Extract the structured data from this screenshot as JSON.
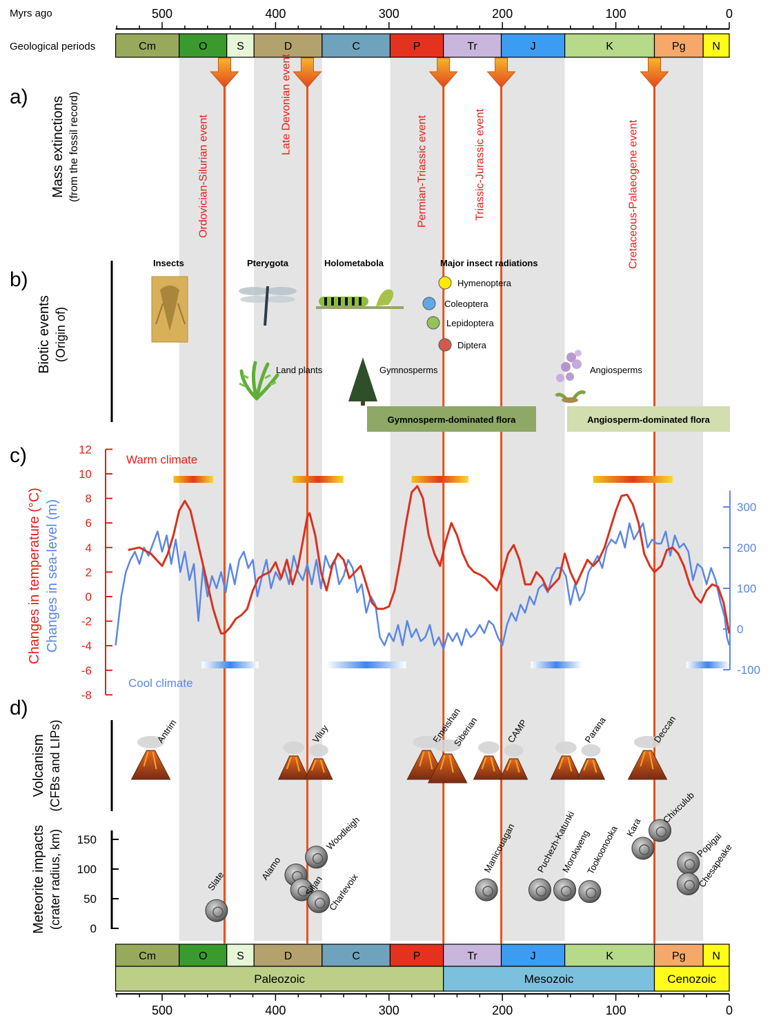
{
  "top_axis": {
    "label": "Myrs ago",
    "ticks": [
      500,
      400,
      300,
      200,
      100,
      0
    ]
  },
  "bottom_axis": {
    "ticks": [
      500,
      400,
      300,
      200,
      100,
      0
    ]
  },
  "periods_label": "Geological periods",
  "periods": [
    {
      "abbr": "Cm",
      "start": 541,
      "end": 485,
      "color": "#98A95C"
    },
    {
      "abbr": "O",
      "start": 485,
      "end": 443,
      "color": "#3A9A2E"
    },
    {
      "abbr": "S",
      "start": 443,
      "end": 419,
      "color": "#E6F6D6"
    },
    {
      "abbr": "D",
      "start": 419,
      "end": 359,
      "color": "#B3A26E"
    },
    {
      "abbr": "C",
      "start": 359,
      "end": 299,
      "color": "#6FA3BD"
    },
    {
      "abbr": "P",
      "start": 299,
      "end": 252,
      "color": "#E5321F"
    },
    {
      "abbr": "Tr",
      "start": 252,
      "end": 201,
      "color": "#C9B6DC"
    },
    {
      "abbr": "J",
      "start": 201,
      "end": 145,
      "color": "#3C9CF1"
    },
    {
      "abbr": "K",
      "start": 145,
      "end": 66,
      "color": "#B6D98A"
    },
    {
      "abbr": "Pg",
      "start": 66,
      "end": 23,
      "color": "#F5A86A"
    },
    {
      "abbr": "N",
      "start": 23,
      "end": 0,
      "color": "#FFFB1A"
    }
  ],
  "eras": [
    {
      "name": "Paleozoic",
      "start": 541,
      "end": 252,
      "color": "#BCCF86"
    },
    {
      "name": "Mesozoic",
      "start": 252,
      "end": 66,
      "color": "#7BC1DD"
    },
    {
      "name": "Cenozoic",
      "start": 66,
      "end": 0,
      "color": "#FFFB1A"
    }
  ],
  "section_a": {
    "letter": "a)",
    "title": "Mass extinctions",
    "subtitle": "(from the fossil record)"
  },
  "extinctions": [
    {
      "label": "Ordovician-Silurian event",
      "age": 445
    },
    {
      "label": "Late Devonian event",
      "age": 372
    },
    {
      "label": "Permian-Triassic event",
      "age": 252
    },
    {
      "label": "Triassic-Jurassic event",
      "age": 201
    },
    {
      "label": "Cretaceous-Palaeogene event",
      "age": 66
    }
  ],
  "section_b": {
    "letter": "b)",
    "title": "Biotic events",
    "subtitle": "(Origin of)"
  },
  "biotic_labels": {
    "insects": "Insects",
    "pterygota": "Pterygota",
    "holometabola": "Holometabola",
    "radiations": "Major insect radiations",
    "land_plants": "Land plants",
    "gymnosperms": "Gymnosperms",
    "angiosperms": "Angiosperms"
  },
  "insect_radiations": [
    {
      "name": "Hymenoptera",
      "color": "#FFEA00"
    },
    {
      "name": "Coleoptera",
      "color": "#62A8E8"
    },
    {
      "name": "Lepidoptera",
      "color": "#93C25A"
    },
    {
      "name": "Diptera",
      "color": "#D05A4E"
    }
  ],
  "flora": [
    {
      "label": "Gymnosperm-dominated flora",
      "color": "#8FA866"
    },
    {
      "label": "Angiosperm-dominated flora",
      "color": "#D2DDB0"
    }
  ],
  "section_c": {
    "letter": "c)"
  },
  "chart_data": {
    "type": "line",
    "ylabel": "Changes in temperature (°C)",
    "ylabel2": "Changes in sea-level (m)",
    "ylim": [
      -8,
      12
    ],
    "yticks": [
      12,
      10,
      8,
      6,
      4,
      2,
      0,
      -2,
      -4,
      -6,
      -8
    ],
    "ylim2": [
      -100,
      340
    ],
    "yticks2": [
      300,
      200,
      100,
      0,
      -100
    ],
    "xlim": [
      541,
      0
    ],
    "warm_label": "Warm climate",
    "cool_label": "Cool climate",
    "warm_periods": [
      [
        490,
        455
      ],
      [
        385,
        340
      ],
      [
        280,
        230
      ],
      [
        120,
        50
      ]
    ],
    "cool_periods": [
      [
        465,
        415
      ],
      [
        355,
        285
      ],
      [
        175,
        130
      ],
      [
        38,
        0
      ]
    ],
    "series": [
      {
        "name": "Changes in temperature (°C)",
        "color": "#D9311E",
        "axis": "left",
        "x": [
          530,
          520,
          510,
          500,
          495,
          490,
          485,
          480,
          475,
          470,
          465,
          460,
          455,
          450,
          448,
          445,
          440,
          435,
          430,
          425,
          420,
          415,
          410,
          405,
          400,
          395,
          390,
          385,
          380,
          375,
          372,
          370,
          365,
          360,
          355,
          350,
          345,
          340,
          335,
          330,
          325,
          320,
          315,
          310,
          305,
          300,
          295,
          290,
          285,
          280,
          275,
          270,
          265,
          260,
          255,
          250,
          245,
          240,
          235,
          230,
          225,
          220,
          215,
          210,
          205,
          201,
          195,
          190,
          185,
          180,
          175,
          170,
          165,
          160,
          155,
          150,
          145,
          140,
          135,
          130,
          125,
          120,
          115,
          110,
          105,
          100,
          95,
          90,
          85,
          80,
          75,
          70,
          66,
          60,
          55,
          50,
          45,
          40,
          35,
          30,
          25,
          20,
          15,
          10,
          5,
          0
        ],
        "y": [
          3.8,
          4.0,
          3.5,
          2.5,
          3.5,
          5.0,
          7.0,
          7.8,
          7.0,
          5.0,
          3.0,
          1.0,
          -1.0,
          -2.5,
          -3.0,
          -3.0,
          -2.5,
          -1.8,
          -1.5,
          -1.0,
          0.5,
          1.5,
          1.8,
          2.0,
          2.8,
          1.5,
          3.0,
          1.0,
          2.5,
          5.0,
          6.5,
          6.8,
          5.0,
          2.0,
          0.5,
          2.5,
          3.5,
          3.0,
          1.5,
          2.0,
          2.5,
          1.0,
          -0.5,
          -1.0,
          -1.0,
          -0.8,
          0.5,
          3.0,
          6.0,
          8.5,
          9.0,
          8.0,
          5.0,
          3.5,
          2.5,
          4.5,
          6.0,
          5.0,
          3.5,
          2.5,
          2.0,
          1.8,
          1.5,
          1.0,
          0.5,
          1.5,
          3.5,
          4.2,
          3.0,
          1.0,
          1.0,
          2.0,
          1.5,
          0.5,
          1.0,
          1.5,
          3.5,
          2.0,
          1.0,
          2.0,
          3.0,
          2.5,
          3.0,
          4.0,
          5.5,
          7.0,
          8.2,
          8.3,
          7.5,
          6.0,
          3.5,
          2.5,
          2.0,
          2.5,
          3.8,
          4.0,
          3.5,
          2.5,
          1.0,
          0.0,
          -0.5,
          0.5,
          1.0,
          0.8,
          -0.5,
          -3.0
        ]
      },
      {
        "name": "Changes in sea-level (m)",
        "color": "#5A86E8",
        "axis": "right",
        "x": [
          541,
          536,
          532,
          528,
          524,
          520,
          516,
          512,
          508,
          504,
          500,
          496,
          492,
          488,
          484,
          480,
          476,
          472,
          468,
          464,
          460,
          456,
          452,
          448,
          444,
          440,
          436,
          432,
          428,
          424,
          420,
          416,
          412,
          408,
          404,
          400,
          396,
          392,
          388,
          384,
          380,
          376,
          372,
          368,
          364,
          360,
          356,
          352,
          348,
          344,
          340,
          336,
          332,
          328,
          324,
          320,
          316,
          312,
          308,
          304,
          300,
          296,
          292,
          288,
          284,
          280,
          276,
          272,
          268,
          264,
          260,
          256,
          252,
          248,
          244,
          240,
          236,
          232,
          228,
          224,
          220,
          216,
          212,
          208,
          204,
          200,
          196,
          192,
          188,
          184,
          180,
          176,
          172,
          168,
          164,
          160,
          156,
          152,
          148,
          144,
          140,
          136,
          132,
          128,
          124,
          120,
          116,
          112,
          108,
          104,
          100,
          96,
          92,
          88,
          84,
          80,
          76,
          72,
          68,
          64,
          60,
          56,
          52,
          48,
          44,
          40,
          36,
          32,
          28,
          24,
          20,
          16,
          12,
          8,
          4,
          2,
          0
        ],
        "y": [
          -40,
          80,
          140,
          170,
          190,
          160,
          200,
          180,
          210,
          240,
          190,
          230,
          160,
          220,
          140,
          190,
          120,
          160,
          20,
          150,
          80,
          130,
          100,
          140,
          90,
          160,
          110,
          170,
          190,
          150,
          170,
          80,
          130,
          170,
          100,
          140,
          120,
          150,
          110,
          180,
          140,
          120,
          160,
          110,
          170,
          100,
          180,
          150,
          170,
          110,
          130,
          170,
          150,
          90,
          110,
          40,
          80,
          60,
          -20,
          -40,
          -10,
          -30,
          10,
          -40,
          20,
          -20,
          0,
          -30,
          -20,
          10,
          -40,
          -20,
          -50,
          -10,
          -30,
          -10,
          -40,
          0,
          -20,
          -10,
          10,
          -10,
          20,
          10,
          -20,
          -40,
          10,
          40,
          20,
          60,
          40,
          80,
          60,
          100,
          110,
          90,
          130,
          150,
          150,
          130,
          60,
          110,
          70,
          90,
          140,
          160,
          180,
          150,
          200,
          220,
          210,
          240,
          200,
          260,
          220,
          240,
          260,
          200,
          220,
          210,
          210,
          240,
          180,
          230,
          200,
          210,
          190,
          120,
          160,
          150,
          110,
          150,
          120,
          70,
          30,
          -20,
          -40
        ]
      }
    ]
  },
  "section_d": {
    "letter": "d)"
  },
  "volcanism_title": "Volcanism",
  "volcanism_subtitle": "(CFBs and LIPs)",
  "volcanoes": [
    {
      "name": "Antrim",
      "age": 510,
      "pair": false
    },
    {
      "name": "Viluy",
      "age": 373,
      "pair": true
    },
    {
      "name": "Emeishan",
      "age": 262,
      "pair": false
    },
    {
      "name": "Siberian",
      "age": 252,
      "pair": false
    },
    {
      "name": "CAMP",
      "age": 201,
      "pair": true
    },
    {
      "name": "Parana",
      "age": 133,
      "pair": true
    },
    {
      "name": "Deccan",
      "age": 66,
      "pair": false
    }
  ],
  "impacts_title": "Meteorite impacts",
  "impacts_subtitle": "(crater radius, km)",
  "impacts_yticks": [
    150,
    100,
    50,
    0
  ],
  "impacts": [
    {
      "name": "Slate",
      "age": 452,
      "radius": 30
    },
    {
      "name": "Alamo",
      "age": 382,
      "radius": 90
    },
    {
      "name": "Woodleigh",
      "age": 364,
      "radius": 120
    },
    {
      "name": "Siljan",
      "age": 377,
      "radius": 65
    },
    {
      "name": "Charlevoix",
      "age": 362,
      "radius": 45
    },
    {
      "name": "Manicouagan",
      "age": 214,
      "radius": 65
    },
    {
      "name": "Puchezh-Katunki",
      "age": 167,
      "radius": 65
    },
    {
      "name": "Morokweng",
      "age": 145,
      "radius": 65
    },
    {
      "name": "Tookoonooka",
      "age": 123,
      "radius": 62
    },
    {
      "name": "Kara",
      "age": 70,
      "radius": 135
    },
    {
      "name": "Chixculub",
      "age": 66,
      "radius": 165
    },
    {
      "name": "Popigai",
      "age": 36,
      "radius": 110
    },
    {
      "name": "Chesapeake",
      "age": 35,
      "radius": 75
    }
  ]
}
